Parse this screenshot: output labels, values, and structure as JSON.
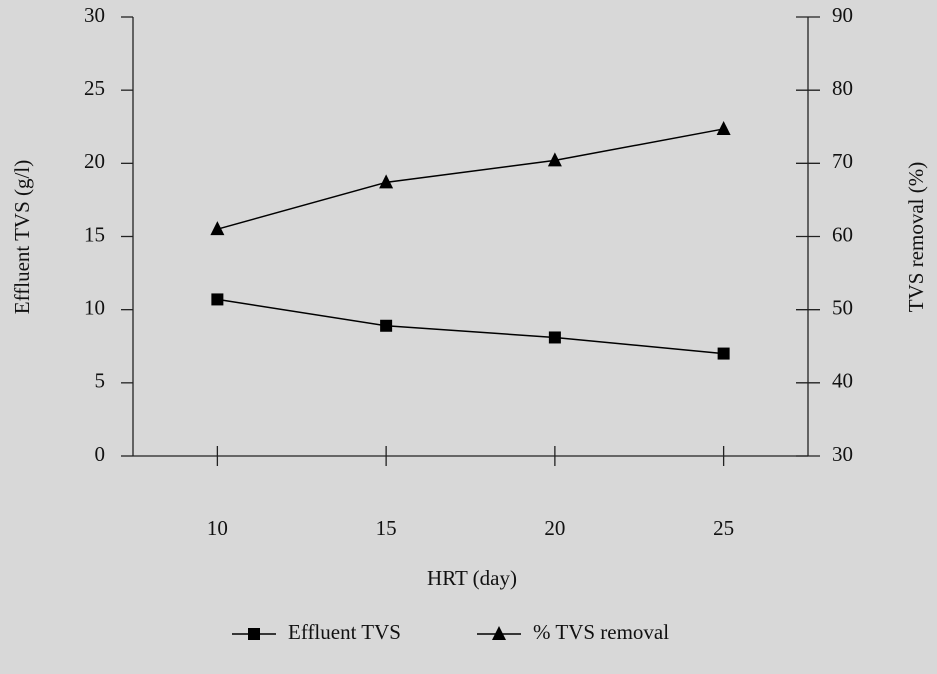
{
  "chart_data": {
    "type": "line",
    "x": [
      10,
      15,
      20,
      25
    ],
    "xlim": [
      7.5,
      27.5
    ],
    "xticks": [
      10,
      15,
      20,
      25
    ],
    "ylim": [
      0,
      30
    ],
    "yticks": [
      0,
      5,
      10,
      15,
      20,
      25,
      30
    ],
    "y2lim": [
      30,
      90
    ],
    "y2ticks": [
      30,
      40,
      50,
      60,
      70,
      80,
      90
    ],
    "xlabel": "HRT (day)",
    "ylabel": "Effluent TVS (g/l)",
    "y2label": "TVS removal (%)",
    "legend": "bottom",
    "series": [
      {
        "name": "Effluent TVS",
        "color": "#000000",
        "marker": "square",
        "values": [
          10.7,
          8.9,
          8.1,
          7.0
        ]
      },
      {
        "name": "% TVS removal",
        "color": "#000000",
        "marker": "triangle",
        "axis": "y2",
        "values": [
          61.0,
          67.4,
          70.4,
          74.7
        ]
      }
    ]
  }
}
